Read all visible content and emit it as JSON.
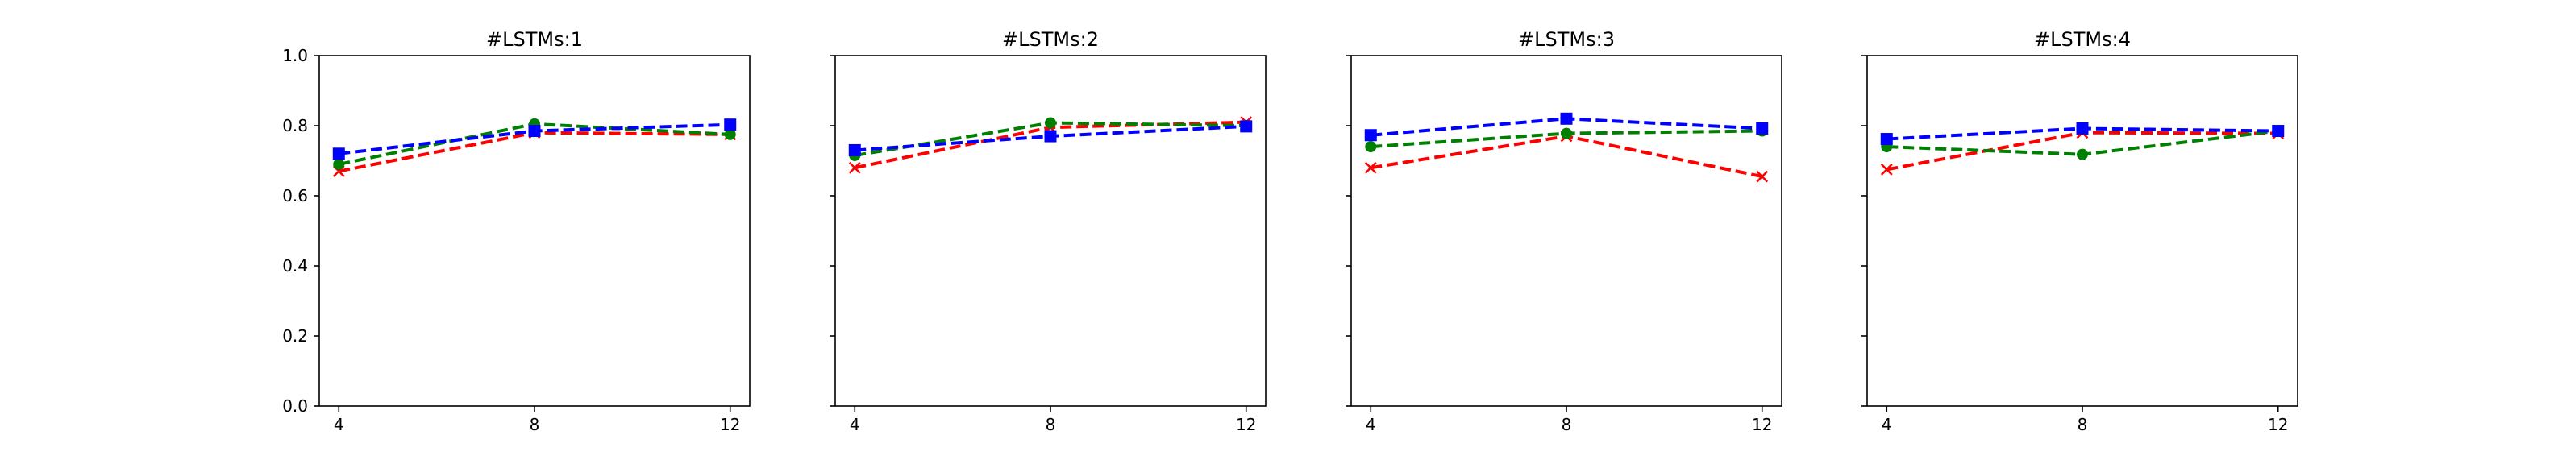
{
  "chart_data": [
    {
      "type": "line",
      "title": "#LSTMs:1",
      "x": [
        4,
        8,
        12
      ],
      "xticks": [
        "4",
        "8",
        "12"
      ],
      "xlim": [
        3.6,
        12.4
      ],
      "ylim": [
        0.0,
        1.0
      ],
      "yticks": [
        "0.0",
        "0.2",
        "0.4",
        "0.6",
        "0.8",
        "1.0"
      ],
      "show_ytick_labels": true,
      "grid": false,
      "series": [
        {
          "color": "#ff0000",
          "marker": "x",
          "linestyle": "dashed",
          "values": [
            0.67,
            0.78,
            0.775
          ]
        },
        {
          "color": "#008000",
          "marker": "o",
          "linestyle": "dashed",
          "values": [
            0.69,
            0.805,
            0.775
          ]
        },
        {
          "color": "#0000ff",
          "marker": "s",
          "linestyle": "dashed",
          "values": [
            0.72,
            0.785,
            0.803
          ]
        }
      ]
    },
    {
      "type": "line",
      "title": "#LSTMs:2",
      "x": [
        4,
        8,
        12
      ],
      "xticks": [
        "4",
        "8",
        "12"
      ],
      "xlim": [
        3.6,
        12.4
      ],
      "ylim": [
        0.0,
        1.0
      ],
      "yticks": [
        "0.0",
        "0.2",
        "0.4",
        "0.6",
        "0.8",
        "1.0"
      ],
      "show_ytick_labels": false,
      "grid": false,
      "series": [
        {
          "color": "#ff0000",
          "marker": "x",
          "linestyle": "dashed",
          "values": [
            0.68,
            0.795,
            0.81
          ]
        },
        {
          "color": "#008000",
          "marker": "o",
          "linestyle": "dashed",
          "values": [
            0.715,
            0.808,
            0.8
          ]
        },
        {
          "color": "#0000ff",
          "marker": "s",
          "linestyle": "dashed",
          "values": [
            0.73,
            0.77,
            0.798
          ]
        }
      ]
    },
    {
      "type": "line",
      "title": "#LSTMs:3",
      "x": [
        4,
        8,
        12
      ],
      "xticks": [
        "4",
        "8",
        "12"
      ],
      "xlim": [
        3.6,
        12.4
      ],
      "ylim": [
        0.0,
        1.0
      ],
      "yticks": [
        "0.0",
        "0.2",
        "0.4",
        "0.6",
        "0.8",
        "1.0"
      ],
      "show_ytick_labels": false,
      "grid": false,
      "series": [
        {
          "color": "#ff0000",
          "marker": "x",
          "linestyle": "dashed",
          "values": [
            0.68,
            0.77,
            0.655
          ]
        },
        {
          "color": "#008000",
          "marker": "o",
          "linestyle": "dashed",
          "values": [
            0.74,
            0.778,
            0.785
          ]
        },
        {
          "color": "#0000ff",
          "marker": "s",
          "linestyle": "dashed",
          "values": [
            0.773,
            0.82,
            0.792
          ]
        }
      ]
    },
    {
      "type": "line",
      "title": "#LSTMs:4",
      "x": [
        4,
        8,
        12
      ],
      "xticks": [
        "4",
        "8",
        "12"
      ],
      "xlim": [
        3.6,
        12.4
      ],
      "ylim": [
        0.0,
        1.0
      ],
      "yticks": [
        "0.0",
        "0.2",
        "0.4",
        "0.6",
        "0.8",
        "1.0"
      ],
      "show_ytick_labels": false,
      "grid": false,
      "series": [
        {
          "color": "#ff0000",
          "marker": "x",
          "linestyle": "dashed",
          "values": [
            0.675,
            0.78,
            0.778
          ]
        },
        {
          "color": "#008000",
          "marker": "o",
          "linestyle": "dashed",
          "values": [
            0.74,
            0.718,
            0.785
          ]
        },
        {
          "color": "#0000ff",
          "marker": "s",
          "linestyle": "dashed",
          "values": [
            0.762,
            0.792,
            0.785
          ]
        }
      ]
    }
  ]
}
